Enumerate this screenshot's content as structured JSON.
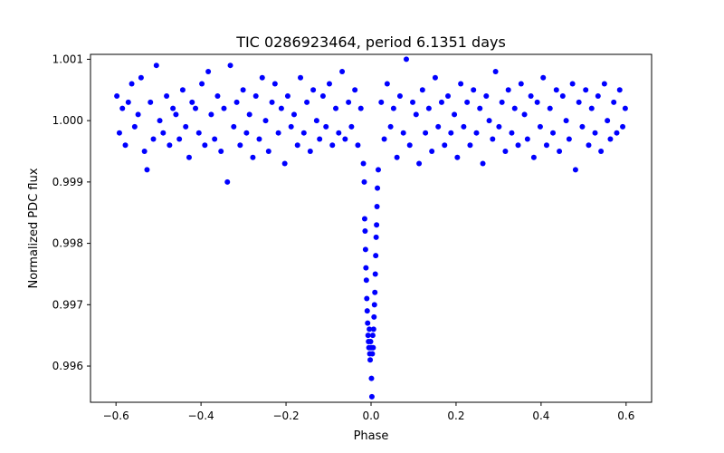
{
  "chart_data": {
    "type": "scatter",
    "title": "TIC 0286923464, period 6.1351 days",
    "xlabel": "Phase",
    "ylabel": "Normalized PDC flux",
    "xlim": [
      -0.66,
      0.66
    ],
    "ylim": [
      0.99541,
      1.00108
    ],
    "xticks": [
      -0.6,
      -0.4,
      -0.2,
      0.0,
      0.2,
      0.4,
      0.6
    ],
    "xtick_labels": [
      "−0.6",
      "−0.4",
      "−0.2",
      "0.0",
      "0.2",
      "0.4",
      "0.6"
    ],
    "yticks": [
      0.996,
      0.997,
      0.998,
      0.999,
      1.0,
      1.001
    ],
    "ytick_labels": [
      "0.996",
      "0.997",
      "0.998",
      "0.999",
      "1.000",
      "1.001"
    ],
    "grid": false,
    "marker_color": "#0000ff",
    "points": [
      [
        -0.598,
        1.0004
      ],
      [
        -0.592,
        0.9998
      ],
      [
        -0.585,
        1.0002
      ],
      [
        -0.578,
        0.9996
      ],
      [
        -0.571,
        1.0003
      ],
      [
        -0.563,
        1.0006
      ],
      [
        -0.556,
        0.9999
      ],
      [
        -0.548,
        1.0001
      ],
      [
        -0.541,
        1.0007
      ],
      [
        -0.533,
        0.9995
      ],
      [
        -0.527,
        0.9992
      ],
      [
        -0.519,
        1.0003
      ],
      [
        -0.512,
        0.9997
      ],
      [
        -0.505,
        1.0009
      ],
      [
        -0.497,
        1.0
      ],
      [
        -0.489,
        0.9998
      ],
      [
        -0.481,
        1.0004
      ],
      [
        -0.474,
        0.9996
      ],
      [
        -0.466,
        1.0002
      ],
      [
        -0.459,
        1.0001
      ],
      [
        -0.451,
        0.9997
      ],
      [
        -0.443,
        1.0005
      ],
      [
        -0.436,
        0.9999
      ],
      [
        -0.428,
        0.9994
      ],
      [
        -0.421,
        1.0003
      ],
      [
        -0.413,
        1.0002
      ],
      [
        -0.405,
        0.9998
      ],
      [
        -0.398,
        1.0006
      ],
      [
        -0.391,
        0.9996
      ],
      [
        -0.383,
        1.0008
      ],
      [
        -0.376,
        1.0001
      ],
      [
        -0.368,
        0.9997
      ],
      [
        -0.361,
        1.0004
      ],
      [
        -0.353,
        0.9995
      ],
      [
        -0.346,
        1.0002
      ],
      [
        -0.338,
        0.999
      ],
      [
        -0.331,
        1.0009
      ],
      [
        -0.323,
        0.9999
      ],
      [
        -0.316,
        1.0003
      ],
      [
        -0.308,
        0.9996
      ],
      [
        -0.301,
        1.0005
      ],
      [
        -0.293,
        0.9998
      ],
      [
        -0.286,
        1.0001
      ],
      [
        -0.278,
        0.9994
      ],
      [
        -0.271,
        1.0004
      ],
      [
        -0.263,
        0.9997
      ],
      [
        -0.256,
        1.0007
      ],
      [
        -0.248,
        1.0
      ],
      [
        -0.241,
        0.9995
      ],
      [
        -0.233,
        1.0003
      ],
      [
        -0.226,
        1.0006
      ],
      [
        -0.218,
        0.9998
      ],
      [
        -0.211,
        1.0002
      ],
      [
        -0.203,
        0.9993
      ],
      [
        -0.196,
        1.0004
      ],
      [
        -0.188,
        0.9999
      ],
      [
        -0.181,
        1.0001
      ],
      [
        -0.173,
        0.9996
      ],
      [
        -0.166,
        1.0007
      ],
      [
        -0.158,
        0.9998
      ],
      [
        -0.151,
        1.0003
      ],
      [
        -0.143,
        0.9995
      ],
      [
        -0.136,
        1.0005
      ],
      [
        -0.128,
        1.0
      ],
      [
        -0.121,
        0.9997
      ],
      [
        -0.113,
        1.0004
      ],
      [
        -0.106,
        0.9999
      ],
      [
        -0.098,
        1.0006
      ],
      [
        -0.091,
        0.9996
      ],
      [
        -0.083,
        1.0002
      ],
      [
        -0.076,
        0.9998
      ],
      [
        -0.068,
        1.0008
      ],
      [
        -0.061,
        0.9997
      ],
      [
        -0.053,
        1.0003
      ],
      [
        -0.046,
        0.9999
      ],
      [
        -0.038,
        1.0005
      ],
      [
        -0.031,
        0.9996
      ],
      [
        -0.024,
        1.0002
      ],
      [
        -0.018,
        0.9993
      ],
      [
        -0.016,
        0.999
      ],
      [
        -0.015,
        0.9984
      ],
      [
        -0.014,
        0.9982
      ],
      [
        -0.013,
        0.9979
      ],
      [
        -0.012,
        0.9976
      ],
      [
        -0.011,
        0.9974
      ],
      [
        -0.01,
        0.9971
      ],
      [
        -0.009,
        0.9969
      ],
      [
        -0.008,
        0.9967
      ],
      [
        -0.007,
        0.9965
      ],
      [
        -0.006,
        0.9964
      ],
      [
        -0.005,
        0.9963
      ],
      [
        -0.004,
        0.9966
      ],
      [
        -0.003,
        0.9962
      ],
      [
        -0.002,
        0.9961
      ],
      [
        -0.001,
        0.9964
      ],
      [
        0.0,
        0.9963
      ],
      [
        0.001,
        0.9958
      ],
      [
        0.002,
        0.9955
      ],
      [
        0.003,
        0.9962
      ],
      [
        0.004,
        0.9965
      ],
      [
        0.005,
        0.9963
      ],
      [
        0.006,
        0.9966
      ],
      [
        0.007,
        0.9968
      ],
      [
        0.008,
        0.997
      ],
      [
        0.009,
        0.9972
      ],
      [
        0.01,
        0.9975
      ],
      [
        0.011,
        0.9978
      ],
      [
        0.012,
        0.9981
      ],
      [
        0.013,
        0.9983
      ],
      [
        0.014,
        0.9986
      ],
      [
        0.015,
        0.9989
      ],
      [
        0.017,
        0.9992
      ],
      [
        0.024,
        1.0003
      ],
      [
        0.031,
        0.9997
      ],
      [
        0.038,
        1.0006
      ],
      [
        0.046,
        0.9999
      ],
      [
        0.053,
        1.0002
      ],
      [
        0.061,
        0.9994
      ],
      [
        0.068,
        1.0004
      ],
      [
        0.076,
        0.9998
      ],
      [
        0.083,
        1.001
      ],
      [
        0.091,
        0.9996
      ],
      [
        0.098,
        1.0003
      ],
      [
        0.106,
        1.0001
      ],
      [
        0.113,
        0.9993
      ],
      [
        0.121,
        1.0005
      ],
      [
        0.128,
        0.9998
      ],
      [
        0.136,
        1.0002
      ],
      [
        0.143,
        0.9995
      ],
      [
        0.151,
        1.0007
      ],
      [
        0.158,
        0.9999
      ],
      [
        0.166,
        1.0003
      ],
      [
        0.173,
        0.9996
      ],
      [
        0.181,
        1.0004
      ],
      [
        0.188,
        0.9998
      ],
      [
        0.196,
        1.0001
      ],
      [
        0.203,
        0.9994
      ],
      [
        0.211,
        1.0006
      ],
      [
        0.218,
        0.9999
      ],
      [
        0.226,
        1.0003
      ],
      [
        0.233,
        0.9996
      ],
      [
        0.241,
        1.0005
      ],
      [
        0.248,
        0.9998
      ],
      [
        0.256,
        1.0002
      ],
      [
        0.263,
        0.9993
      ],
      [
        0.271,
        1.0004
      ],
      [
        0.278,
        1.0
      ],
      [
        0.286,
        0.9997
      ],
      [
        0.293,
        1.0008
      ],
      [
        0.301,
        0.9999
      ],
      [
        0.308,
        1.0003
      ],
      [
        0.316,
        0.9995
      ],
      [
        0.323,
        1.0005
      ],
      [
        0.331,
        0.9998
      ],
      [
        0.338,
        1.0002
      ],
      [
        0.346,
        0.9996
      ],
      [
        0.353,
        1.0006
      ],
      [
        0.361,
        1.0001
      ],
      [
        0.368,
        0.9997
      ],
      [
        0.376,
        1.0004
      ],
      [
        0.383,
        0.9994
      ],
      [
        0.391,
        1.0003
      ],
      [
        0.398,
        0.9999
      ],
      [
        0.405,
        1.0007
      ],
      [
        0.413,
        0.9996
      ],
      [
        0.421,
        1.0002
      ],
      [
        0.428,
        0.9998
      ],
      [
        0.436,
        1.0005
      ],
      [
        0.443,
        0.9995
      ],
      [
        0.451,
        1.0004
      ],
      [
        0.459,
        1.0
      ],
      [
        0.466,
        0.9997
      ],
      [
        0.474,
        1.0006
      ],
      [
        0.481,
        0.9992
      ],
      [
        0.489,
        1.0003
      ],
      [
        0.497,
        0.9999
      ],
      [
        0.505,
        1.0005
      ],
      [
        0.512,
        0.9996
      ],
      [
        0.519,
        1.0002
      ],
      [
        0.527,
        0.9998
      ],
      [
        0.534,
        1.0004
      ],
      [
        0.541,
        0.9995
      ],
      [
        0.549,
        1.0006
      ],
      [
        0.556,
        1.0
      ],
      [
        0.563,
        0.9997
      ],
      [
        0.571,
        1.0003
      ],
      [
        0.578,
        0.9998
      ],
      [
        0.585,
        1.0005
      ],
      [
        0.592,
        0.9999
      ],
      [
        0.598,
        1.0002
      ]
    ]
  }
}
